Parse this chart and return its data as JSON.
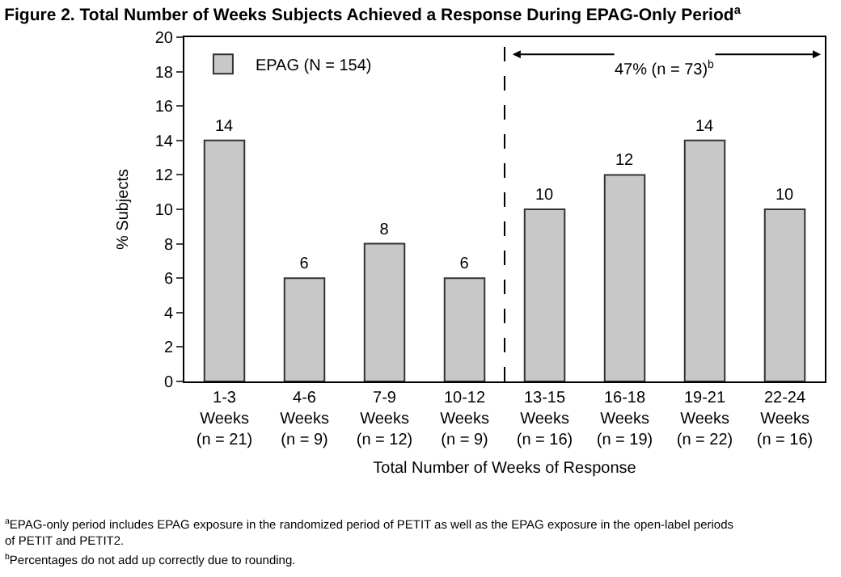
{
  "chart_data": {
    "type": "bar",
    "title": "Figure 2. Total Number of Weeks Subjects Achieved a Response During EPAG-Only Period$^{a}$",
    "categories": [
      "1-3\nWeeks\n(n = 21)",
      "4-6\nWeeks\n(n = 9)",
      "7-9\nWeeks\n(n = 12)",
      "10-12\nWeeks\n(n = 9)",
      "13-15\nWeeks\n(n = 16)",
      "16-18\nWeeks\n(n = 19)",
      "19-21\nWeeks\n(n = 22)",
      "22-24\nWeeks\n(n = 16)"
    ],
    "series": [
      {
        "name": "EPAG (N = 154)",
        "color": "#c8c8c8",
        "values": [
          14,
          6,
          8,
          6,
          10,
          12,
          14,
          10
        ]
      }
    ],
    "xlabel": "Total Number of Weeks of Response",
    "ylabel": "% Subjects",
    "ylim": [
      0,
      20
    ],
    "yticks": [
      0,
      2,
      4,
      6,
      8,
      10,
      12,
      14,
      16,
      18,
      20
    ],
    "data_labels": true,
    "grid": false,
    "legend": "top left",
    "annotations": [
      "47% (n = 73)$^{b}$",
      "$^{a}$EPAG-only period includes EPAG exposure in the randomized period of PETIT as well as the EPAG exposure in the open-label periods of PETIT and PETIT2.",
      "$^{b}$Percentages do not add up correctly due to rounding."
    ]
  }
}
